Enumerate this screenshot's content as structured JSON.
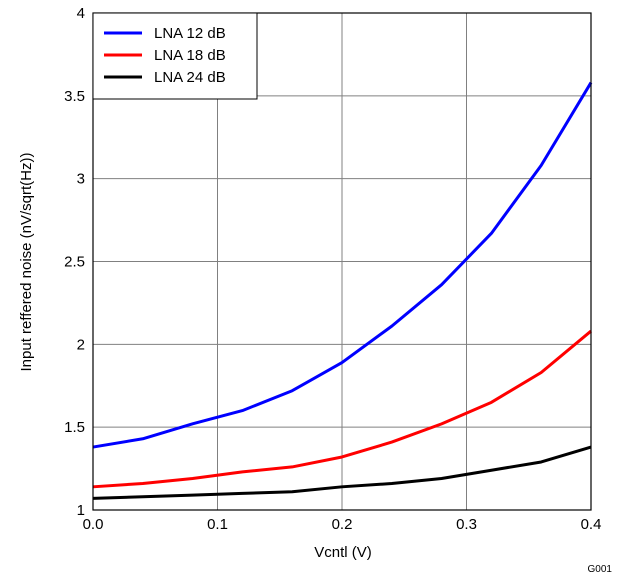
{
  "chart_data": {
    "type": "line",
    "title": "",
    "xlabel": "Vcntl (V)",
    "ylabel": "Input reffered noise (nV/sqrt(Hz))",
    "xlim": [
      0.0,
      0.4
    ],
    "ylim": [
      1,
      4
    ],
    "x_ticks": [
      "0.0",
      "0.1",
      "0.2",
      "0.3",
      "0.4"
    ],
    "y_ticks": [
      "1",
      "1.5",
      "2",
      "2.5",
      "3",
      "3.5",
      "4"
    ],
    "grid": true,
    "legend_position": "top-left",
    "x": [
      0.0,
      0.04,
      0.08,
      0.12,
      0.16,
      0.2,
      0.24,
      0.28,
      0.32,
      0.36,
      0.4
    ],
    "series": [
      {
        "name": "LNA 12 dB",
        "color": "#0000ff",
        "values": [
          1.38,
          1.43,
          1.52,
          1.6,
          1.72,
          1.89,
          2.11,
          2.36,
          2.67,
          3.08,
          3.58
        ]
      },
      {
        "name": "LNA 18 dB",
        "color": "#ff0000",
        "values": [
          1.14,
          1.16,
          1.19,
          1.23,
          1.26,
          1.32,
          1.41,
          1.52,
          1.65,
          1.83,
          2.08
        ]
      },
      {
        "name": "LNA 24 dB",
        "color": "#000000",
        "values": [
          1.07,
          1.08,
          1.09,
          1.1,
          1.11,
          1.14,
          1.16,
          1.19,
          1.24,
          1.29,
          1.38
        ]
      }
    ],
    "figure_code": "G001"
  }
}
